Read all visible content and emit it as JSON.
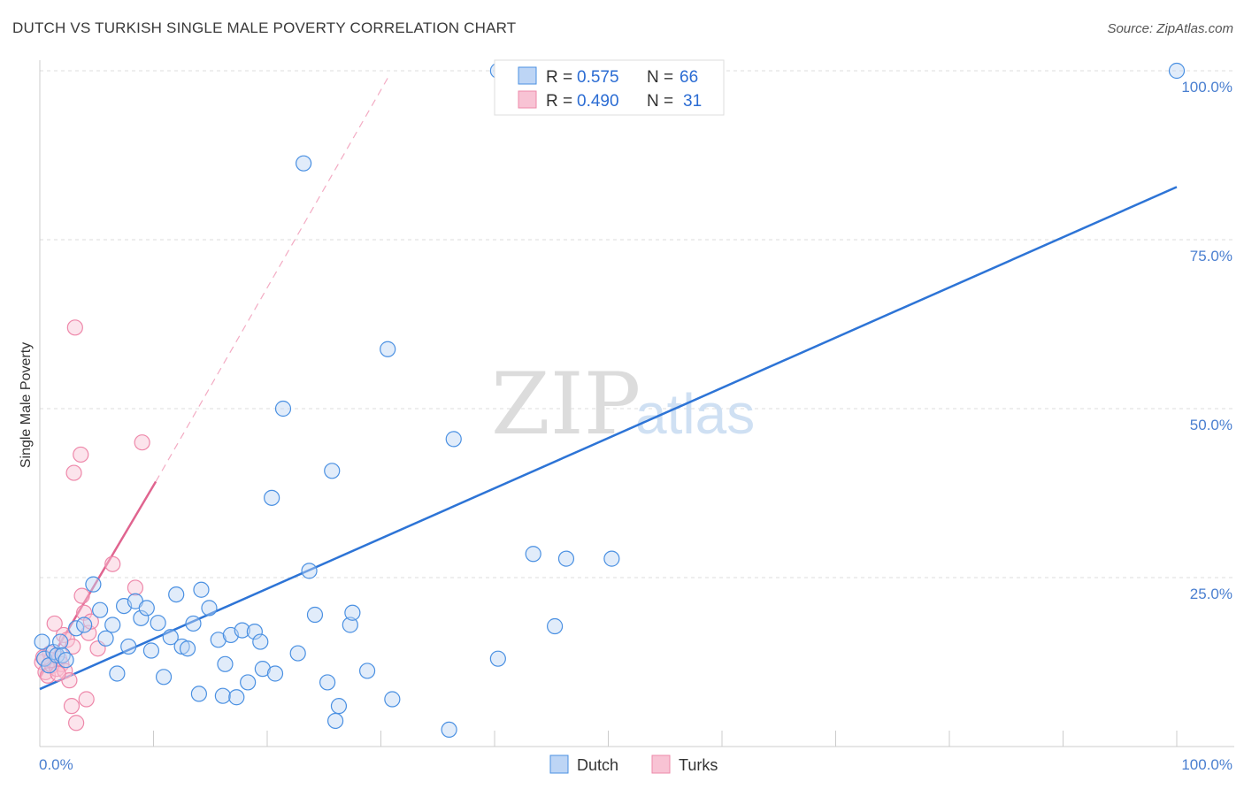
{
  "title": "DUTCH VS TURKISH SINGLE MALE POVERTY CORRELATION CHART",
  "source": "Source: ZipAtlas.com",
  "colors": {
    "dutch": "#4a90e2",
    "dutch_fill": "#bdd5f5",
    "dutch_line": "#2d74d6",
    "turks": "#ee88aa",
    "turks_fill": "#f8c3d4",
    "turks_line": "#e0648f",
    "tick": "#4a7fd0",
    "grid": "#dddddd"
  },
  "watermark": {
    "zip": "ZIP",
    "atlas": "atlas"
  },
  "legend": {
    "rows": [
      {
        "r_label": "R =",
        "r_value": "0.575",
        "n_label": "N =",
        "n_value": "66"
      },
      {
        "r_label": "R =",
        "r_value": "0.490",
        "n_label": "N =",
        "n_value": "31"
      }
    ]
  },
  "bottom_legend": [
    "Dutch",
    "Turks"
  ],
  "chart_data": {
    "type": "scatter",
    "title": "DUTCH VS TURKISH SINGLE MALE POVERTY CORRELATION CHART",
    "xlabel": "",
    "ylabel": "Single Male Poverty",
    "xlim": [
      0,
      100
    ],
    "ylim": [
      0,
      100
    ],
    "x_tick_labels": [
      "0.0%",
      "100.0%"
    ],
    "y_ticks": [
      25,
      50,
      75,
      100
    ],
    "y_tick_labels": [
      "25.0%",
      "50.0%",
      "75.0%",
      "100.0%"
    ],
    "grid": true,
    "series": [
      {
        "name": "Dutch",
        "R": 0.575,
        "N": 66,
        "trend": {
          "x": [
            0,
            100
          ],
          "y": [
            8.5,
            82.8
          ]
        },
        "points": [
          [
            0.2,
            15.5
          ],
          [
            0.4,
            13
          ],
          [
            0.8,
            12
          ],
          [
            1.2,
            14
          ],
          [
            1.5,
            13.5
          ],
          [
            1.8,
            15.5
          ],
          [
            2.0,
            13.5
          ],
          [
            2.3,
            12.8
          ],
          [
            3.2,
            17.5
          ],
          [
            3.9,
            18
          ],
          [
            4.7,
            24
          ],
          [
            5.3,
            20.2
          ],
          [
            5.8,
            16
          ],
          [
            6.4,
            18
          ],
          [
            6.8,
            10.8
          ],
          [
            7.4,
            20.8
          ],
          [
            7.8,
            14.8
          ],
          [
            8.4,
            21.5
          ],
          [
            8.9,
            19
          ],
          [
            9.4,
            20.5
          ],
          [
            9.8,
            14.2
          ],
          [
            10.4,
            18.3
          ],
          [
            10.9,
            10.3
          ],
          [
            11.5,
            16.2
          ],
          [
            12.0,
            22.5
          ],
          [
            12.5,
            14.8
          ],
          [
            13.0,
            14.5
          ],
          [
            13.5,
            18.2
          ],
          [
            14.0,
            7.8
          ],
          [
            14.2,
            23.2
          ],
          [
            14.9,
            20.5
          ],
          [
            15.7,
            15.8
          ],
          [
            16.1,
            7.5
          ],
          [
            16.3,
            12.2
          ],
          [
            16.8,
            16.5
          ],
          [
            17.3,
            7.3
          ],
          [
            17.8,
            17.2
          ],
          [
            18.3,
            9.5
          ],
          [
            18.9,
            17
          ],
          [
            19.4,
            15.5
          ],
          [
            19.6,
            11.5
          ],
          [
            20.4,
            36.8
          ],
          [
            20.7,
            10.8
          ],
          [
            21.4,
            50
          ],
          [
            22.7,
            13.8
          ],
          [
            23.2,
            86.3
          ],
          [
            23.7,
            26
          ],
          [
            24.2,
            19.5
          ],
          [
            25.3,
            9.5
          ],
          [
            25.7,
            40.8
          ],
          [
            26.3,
            6
          ],
          [
            26.0,
            3.8
          ],
          [
            27.3,
            18
          ],
          [
            27.5,
            19.8
          ],
          [
            28.8,
            11.2
          ],
          [
            31.0,
            7
          ],
          [
            30.6,
            58.8
          ],
          [
            36.0,
            2.5
          ],
          [
            36.4,
            45.5
          ],
          [
            40.3,
            13
          ],
          [
            43.4,
            28.5
          ],
          [
            45.3,
            17.8
          ],
          [
            46.3,
            27.8
          ],
          [
            50.3,
            27.8
          ],
          [
            40.3,
            100
          ],
          [
            100,
            100
          ]
        ]
      },
      {
        "name": "Turks",
        "R": 0.49,
        "N": 31,
        "trend_solid": {
          "x": [
            0,
            10.2
          ],
          "y": [
            10.2,
            39.2
          ]
        },
        "trend_dashed": {
          "x": [
            10.2,
            30.8
          ],
          "y": [
            39.2,
            99.5
          ]
        },
        "points": [
          [
            0.2,
            12.5
          ],
          [
            0.5,
            11
          ],
          [
            0.7,
            10.5
          ],
          [
            0.9,
            13.8
          ],
          [
            1.1,
            12
          ],
          [
            1.3,
            18.2
          ],
          [
            1.5,
            11.5
          ],
          [
            1.7,
            13
          ],
          [
            1.9,
            12.2
          ],
          [
            2.1,
            16.5
          ],
          [
            2.2,
            11.2
          ],
          [
            2.4,
            15.8
          ],
          [
            2.6,
            9.8
          ],
          [
            2.9,
            14.8
          ],
          [
            3.2,
            3.5
          ],
          [
            3.1,
            62
          ],
          [
            3.0,
            40.5
          ],
          [
            3.6,
            43.2
          ],
          [
            3.7,
            22.3
          ],
          [
            3.9,
            19.8
          ],
          [
            4.1,
            7
          ],
          [
            4.3,
            16.8
          ],
          [
            4.5,
            18.5
          ],
          [
            5.1,
            14.5
          ],
          [
            6.4,
            27
          ],
          [
            8.4,
            23.5
          ],
          [
            9.0,
            45
          ],
          [
            1.0,
            12.8
          ],
          [
            1.6,
            10.8
          ],
          [
            2.8,
            6
          ],
          [
            0.3,
            13.2
          ]
        ]
      }
    ]
  }
}
